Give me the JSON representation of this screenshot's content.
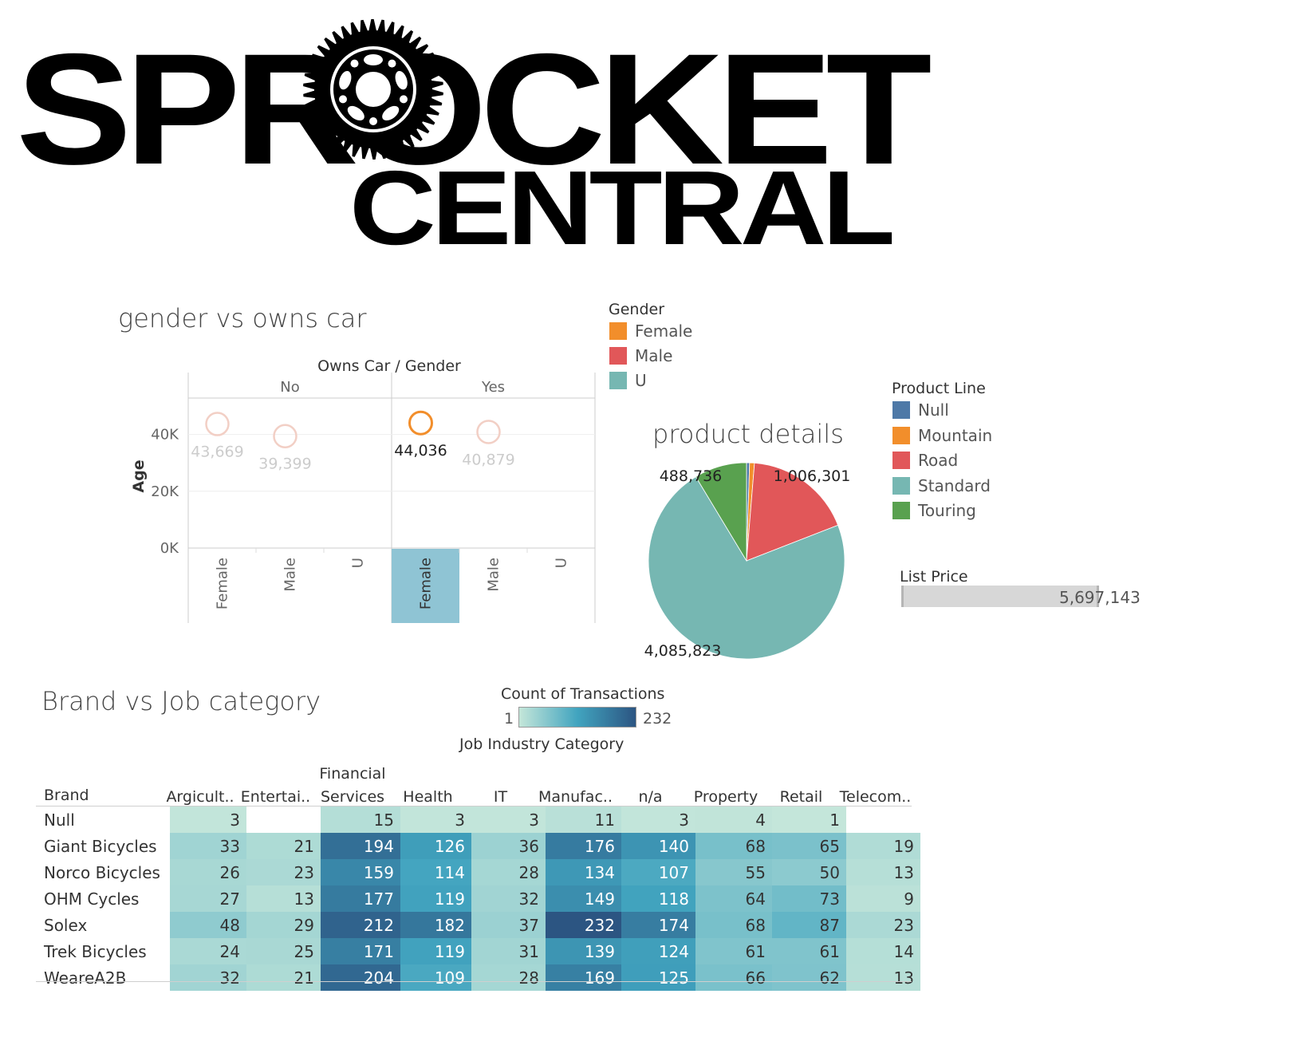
{
  "logo": {
    "line1": "SPROCKET",
    "line2": "CENTRAL"
  },
  "scatter": {
    "title": "gender vs owns car",
    "header": "Owns Car  /  Gender",
    "ylabel": "Age",
    "panels": [
      "No",
      "Yes"
    ],
    "yticks": [
      "40K",
      "20K",
      "0K"
    ],
    "xcats": [
      "Female",
      "Male",
      "U",
      "Female",
      "Male",
      "U"
    ]
  },
  "gender_legend": {
    "title": "Gender",
    "items": [
      {
        "label": "Female",
        "color": "#f28e2b"
      },
      {
        "label": "Male",
        "color": "#e15759"
      },
      {
        "label": "U",
        "color": "#76b7b2"
      }
    ]
  },
  "pie": {
    "title": "product details"
  },
  "product_legend": {
    "title": "Product Line",
    "items": [
      {
        "label": "Null",
        "color": "#4e79a7"
      },
      {
        "label": "Mountain",
        "color": "#f28e2b"
      },
      {
        "label": "Road",
        "color": "#e15759"
      },
      {
        "label": "Standard",
        "color": "#76b7b2"
      },
      {
        "label": "Touring",
        "color": "#59a14f"
      }
    ]
  },
  "list_price": {
    "title": "List Price",
    "value": "5,697,143"
  },
  "heatmap_legend": {
    "title": "Count of Transactions",
    "min": "1",
    "max": "232"
  },
  "heatmap": {
    "title": "Brand vs Job category",
    "col_group_header": "Job Industry Category",
    "row_header": "Brand",
    "columns": [
      "Argicult..",
      "Entertai..",
      "Financial Services",
      "Health",
      "IT",
      "Manufac..",
      "n/a",
      "Property",
      "Retail",
      "Telecom.."
    ]
  },
  "chart_data": [
    {
      "type": "scatter",
      "title": "gender vs owns car",
      "ylabel": "Age",
      "ylim": [
        0,
        50000
      ],
      "series": [
        {
          "owns_car": "No",
          "gender": "Female",
          "value": 43669,
          "display": "43,669",
          "highlighted": false
        },
        {
          "owns_car": "No",
          "gender": "Male",
          "value": 39399,
          "display": "39,399",
          "highlighted": false
        },
        {
          "owns_car": "Yes",
          "gender": "Female",
          "value": 44036,
          "display": "44,036",
          "highlighted": true
        },
        {
          "owns_car": "Yes",
          "gender": "Male",
          "value": 40879,
          "display": "40,879",
          "highlighted": false
        }
      ]
    },
    {
      "type": "pie",
      "title": "product details",
      "slices": [
        {
          "label": "Null",
          "value": 28000,
          "display": "",
          "color": "#4e79a7"
        },
        {
          "label": "Mountain",
          "value": 45000,
          "display": "",
          "color": "#f28e2b"
        },
        {
          "label": "Road",
          "value": 1006301,
          "display": "1,006,301",
          "color": "#e15759"
        },
        {
          "label": "Standard",
          "value": 4085823,
          "display": "4,085,823",
          "color": "#76b7b2"
        },
        {
          "label": "Touring",
          "value": 488736,
          "display": "488,736",
          "color": "#59a14f"
        }
      ]
    },
    {
      "type": "heatmap",
      "title": "Brand vs Job category",
      "rows": [
        "Null",
        "Giant Bicycles",
        "Norco Bicycles",
        "OHM Cycles",
        "Solex",
        "Trek Bicycles",
        "WeareA2B"
      ],
      "columns": [
        "Argicult..",
        "Entertai..",
        "Financial Services",
        "Health",
        "IT",
        "Manufac..",
        "n/a",
        "Property",
        "Retail",
        "Telecom.."
      ],
      "values": [
        [
          3,
          null,
          15,
          3,
          3,
          11,
          3,
          4,
          1,
          null
        ],
        [
          33,
          21,
          194,
          126,
          36,
          176,
          140,
          68,
          65,
          19
        ],
        [
          26,
          23,
          159,
          114,
          28,
          134,
          107,
          55,
          50,
          13
        ],
        [
          27,
          13,
          177,
          119,
          32,
          149,
          118,
          64,
          73,
          9
        ],
        [
          48,
          29,
          212,
          182,
          37,
          232,
          174,
          68,
          87,
          23
        ],
        [
          24,
          25,
          171,
          119,
          31,
          139,
          124,
          61,
          61,
          14
        ],
        [
          32,
          21,
          204,
          109,
          28,
          169,
          125,
          66,
          62,
          13
        ]
      ],
      "color_range": [
        1,
        232
      ]
    }
  ]
}
